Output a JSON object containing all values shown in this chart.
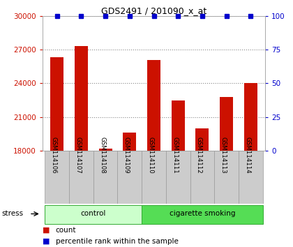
{
  "title": "GDS2491 / 201090_x_at",
  "samples": [
    "GSM114106",
    "GSM114107",
    "GSM114108",
    "GSM114109",
    "GSM114110",
    "GSM114111",
    "GSM114112",
    "GSM114113",
    "GSM114114"
  ],
  "counts": [
    26300,
    27300,
    18200,
    19600,
    26100,
    22500,
    20000,
    22800,
    24000
  ],
  "percentile_ranks": [
    100,
    100,
    100,
    100,
    100,
    100,
    100,
    100,
    100
  ],
  "groups": [
    {
      "label": "control",
      "start": 0,
      "end": 4,
      "color": "#ccffcc"
    },
    {
      "label": "cigarette smoking",
      "start": 4,
      "end": 9,
      "color": "#55dd55"
    }
  ],
  "stress_label": "stress",
  "ylim_left": [
    18000,
    30000
  ],
  "ylim_right": [
    0,
    100
  ],
  "yticks_left": [
    18000,
    21000,
    24000,
    27000,
    30000
  ],
  "yticks_right": [
    0,
    25,
    50,
    75,
    100
  ],
  "bar_color": "#cc1100",
  "dot_color": "#0000cc",
  "title_color": "#000000",
  "left_tick_color": "#cc1100",
  "right_tick_color": "#0000cc",
  "background_color": "#ffffff",
  "sample_box_color": "#cccccc",
  "legend_count_color": "#cc1100",
  "legend_pct_color": "#0000cc",
  "figsize": [
    4.2,
    3.54
  ],
  "dpi": 100
}
